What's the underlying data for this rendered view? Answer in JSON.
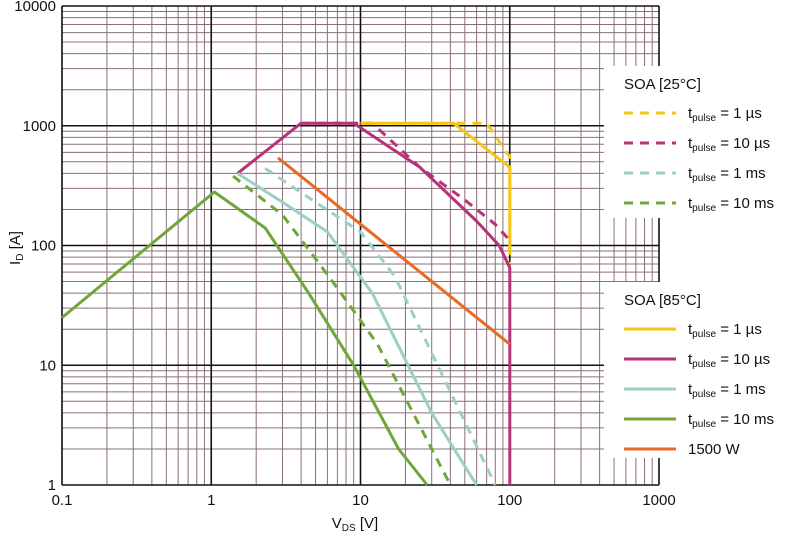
{
  "chart_data": {
    "type": "line",
    "xlabel": {
      "main": "V",
      "sub": "DS",
      "unit": " [V]"
    },
    "ylabel": {
      "main": "I",
      "sub": "D",
      "unit": " [A]"
    },
    "xscale": "log",
    "yscale": "log",
    "xlim": [
      0.1,
      1000
    ],
    "ylim": [
      1,
      10000
    ],
    "grid": true,
    "x_ticks": [
      {
        "value": 0.1,
        "label": "0.1"
      },
      {
        "value": 1,
        "label": "1"
      },
      {
        "value": 10,
        "label": "10"
      },
      {
        "value": 100,
        "label": "100"
      },
      {
        "value": 1000,
        "label": "1000"
      }
    ],
    "y_ticks": [
      {
        "value": 1,
        "label": "1"
      },
      {
        "value": 10,
        "label": "10"
      },
      {
        "value": 100,
        "label": "100"
      },
      {
        "value": 1000,
        "label": "1000"
      },
      {
        "value": 10000,
        "label": "10000"
      }
    ],
    "colors": {
      "yellow": "#f5c518",
      "magenta": "#b8327a",
      "lightblue": "#9bd0c6",
      "green": "#6fa63a",
      "orange": "#e86a24",
      "grid_minor": "#8a7078",
      "grid_major": "#111111"
    },
    "legends": [
      {
        "title": "SOA [25°C]",
        "placement": "right-upper",
        "entries": [
          {
            "pre": "t",
            "sub": "pulse",
            "post": " = 1 µs",
            "color": "yellow",
            "dash": true
          },
          {
            "pre": "t",
            "sub": "pulse",
            "post": " = 10 µs",
            "color": "magenta",
            "dash": true
          },
          {
            "pre": "t",
            "sub": "pulse",
            "post": " = 1 ms",
            "color": "lightblue",
            "dash": true
          },
          {
            "pre": "t",
            "sub": "pulse",
            "post": " = 10 ms",
            "color": "green",
            "dash": true
          }
        ]
      },
      {
        "title": "SOA [85°C]",
        "placement": "right-lower",
        "entries": [
          {
            "pre": "t",
            "sub": "pulse",
            "post": " = 1 µs",
            "color": "yellow",
            "dash": false
          },
          {
            "pre": "t",
            "sub": "pulse",
            "post": " = 10 µs",
            "color": "magenta",
            "dash": false
          },
          {
            "pre": "t",
            "sub": "pulse",
            "post": " = 1 ms",
            "color": "lightblue",
            "dash": false
          },
          {
            "pre": "t",
            "sub": "pulse",
            "post": " = 10 ms",
            "color": "green",
            "dash": false
          },
          {
            "pre": "1500 W",
            "sub": "",
            "post": "",
            "color": "orange",
            "dash": false
          }
        ]
      }
    ],
    "series": [
      {
        "legend": 0,
        "entry": 0,
        "color": "yellow",
        "dash": true,
        "points": [
          [
            10,
            1050
          ],
          [
            70,
            1050
          ],
          [
            100,
            550
          ],
          [
            100,
            70
          ]
        ]
      },
      {
        "legend": 0,
        "entry": 1,
        "color": "magenta",
        "dash": true,
        "points": [
          [
            4,
            1050
          ],
          [
            12,
            1050
          ],
          [
            25,
            450
          ],
          [
            50,
            240
          ],
          [
            80,
            150
          ],
          [
            100,
            110
          ]
        ]
      },
      {
        "legend": 0,
        "entry": 2,
        "color": "lightblue",
        "dash": true,
        "points": [
          [
            2.3,
            440
          ],
          [
            5,
            230
          ],
          [
            10,
            130
          ],
          [
            17,
            55
          ],
          [
            40,
            6
          ],
          [
            80,
            1
          ]
        ]
      },
      {
        "legend": 0,
        "entry": 3,
        "color": "green",
        "dash": true,
        "points": [
          [
            1.4,
            380
          ],
          [
            3,
            180
          ],
          [
            6.5,
            50
          ],
          [
            13,
            15
          ],
          [
            30,
            2
          ],
          [
            40,
            1
          ]
        ]
      },
      {
        "legend": 1,
        "entry": 0,
        "color": "yellow",
        "dash": false,
        "points": [
          [
            10,
            1050
          ],
          [
            42,
            1050
          ],
          [
            100,
            450
          ],
          [
            100,
            90
          ]
        ]
      },
      {
        "legend": 1,
        "entry": 1,
        "color": "magenta",
        "dash": false,
        "points": [
          [
            1.5,
            400
          ],
          [
            4,
            1050
          ],
          [
            9,
            1050
          ],
          [
            25,
            450
          ],
          [
            60,
            160
          ],
          [
            85,
            100
          ],
          [
            100,
            65
          ],
          [
            100,
            1
          ]
        ]
      },
      {
        "legend": 1,
        "entry": 2,
        "color": "lightblue",
        "dash": false,
        "points": [
          [
            1.5,
            400
          ],
          [
            3,
            230
          ],
          [
            6,
            130
          ],
          [
            12,
            40
          ],
          [
            30,
            4
          ],
          [
            60,
            1
          ]
        ]
      },
      {
        "legend": 1,
        "entry": 3,
        "color": "green",
        "dash": false,
        "points": [
          [
            0.1,
            25
          ],
          [
            1.05,
            280
          ],
          [
            2.3,
            140
          ],
          [
            4.5,
            40
          ],
          [
            9,
            10
          ],
          [
            18,
            2
          ],
          [
            28,
            1
          ]
        ]
      },
      {
        "legend": 1,
        "entry": 4,
        "color": "orange",
        "dash": false,
        "points": [
          [
            2.8,
            540
          ],
          [
            100,
            15
          ]
        ]
      }
    ]
  }
}
